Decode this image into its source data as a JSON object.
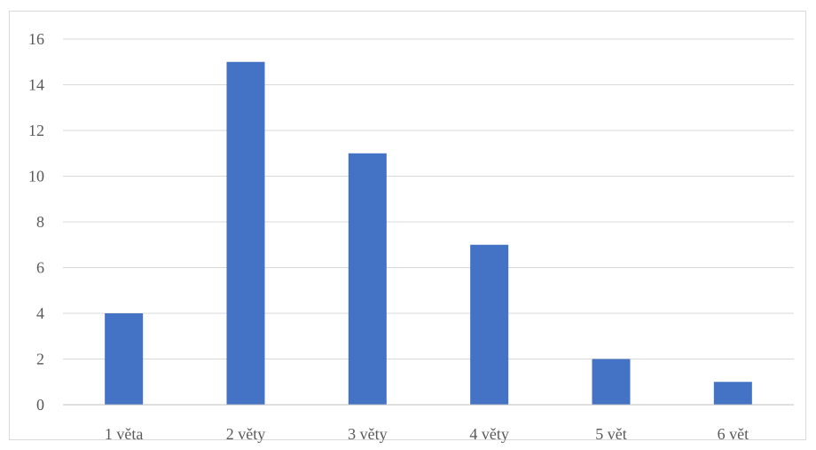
{
  "chart_data": {
    "type": "bar",
    "categories": [
      "1 věta",
      "2 věty",
      "3 věty",
      "4 věty",
      "5 vět",
      "6 vět"
    ],
    "values": [
      4,
      15,
      11,
      7,
      2,
      1
    ],
    "title": "",
    "xlabel": "",
    "ylabel": "",
    "ylim": [
      0,
      16
    ],
    "yticks": [
      "0",
      "2",
      "4",
      "6",
      "8",
      "10",
      "12",
      "14",
      "16"
    ],
    "grid": true,
    "legend": "none",
    "colors": {
      "bar": "#4472C4",
      "grid": "#d9d9d9",
      "axis": "#bfbfbf",
      "label": "#595959"
    }
  }
}
